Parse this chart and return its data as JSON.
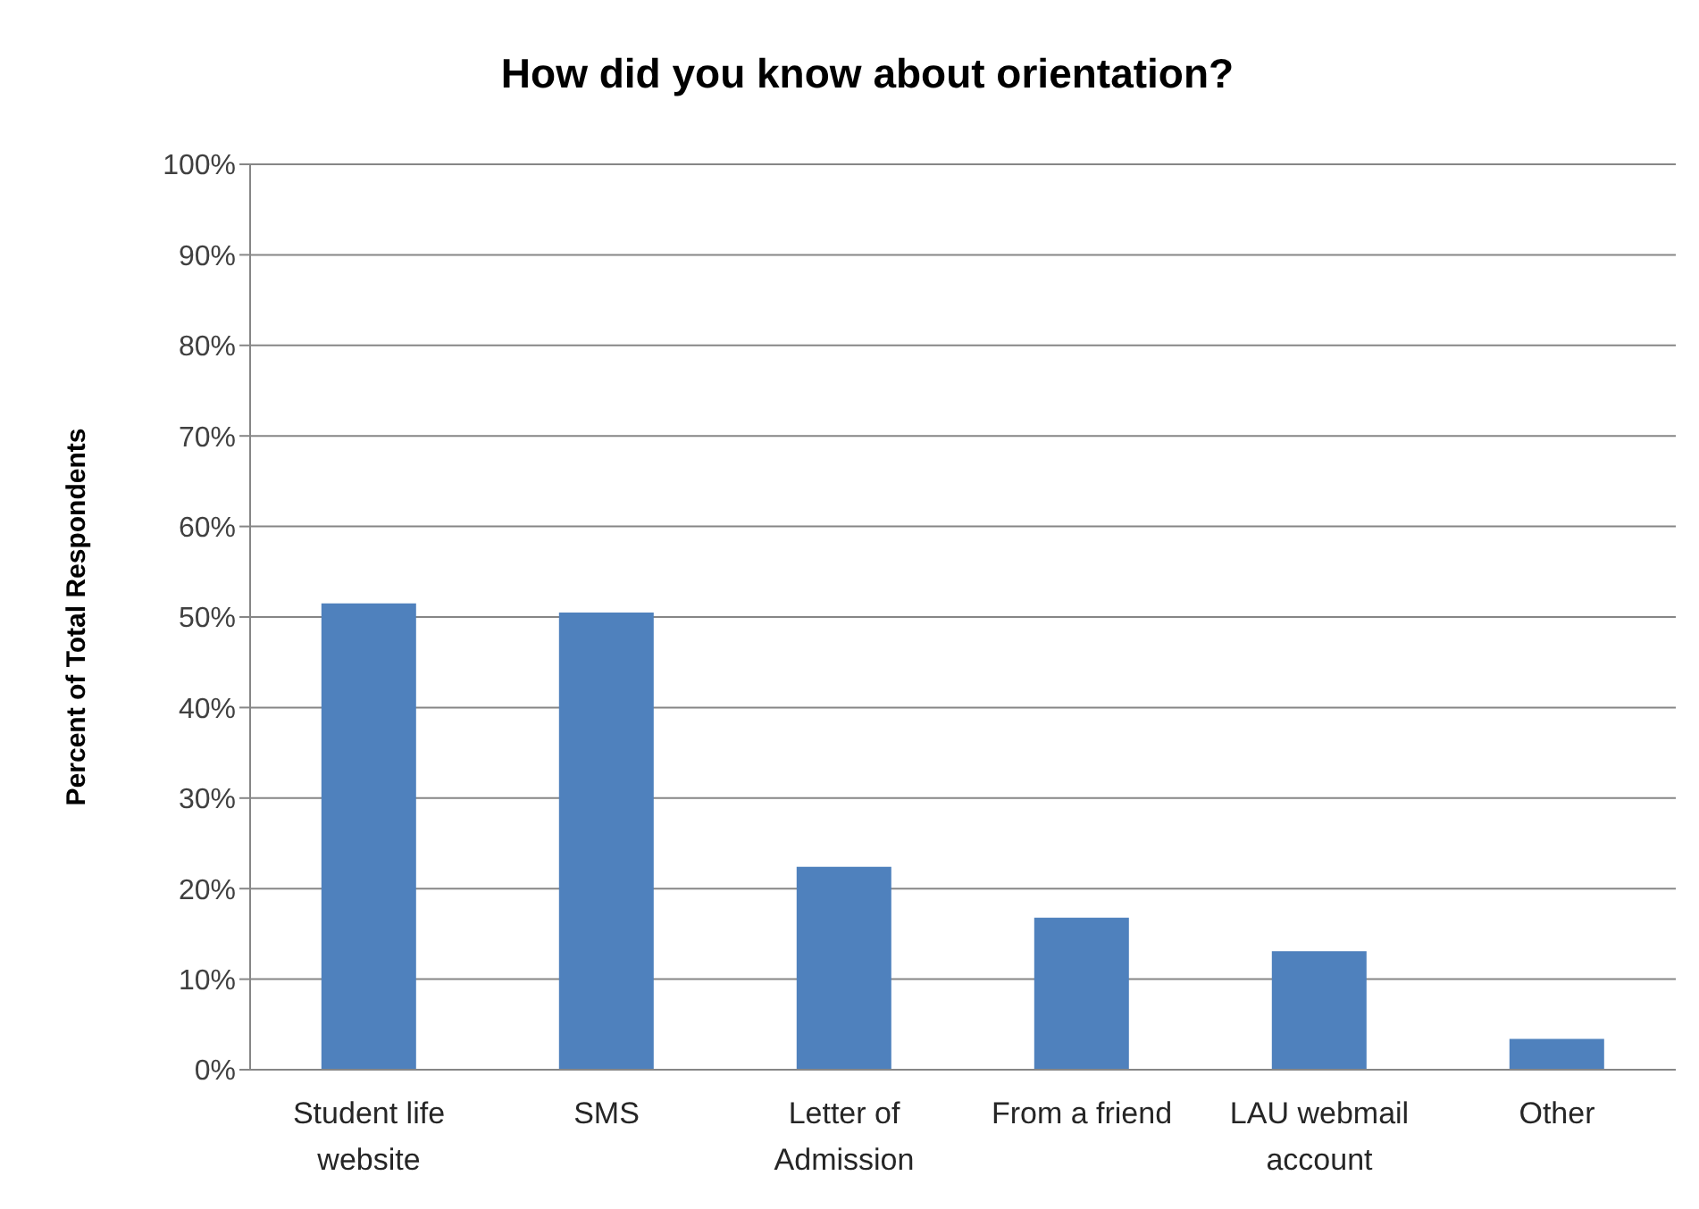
{
  "chart_data": {
    "type": "bar",
    "title": "How did you know about orientation?",
    "ylabel": "Percent of Total Respondents",
    "categories": [
      "Student life website",
      "SMS",
      "Letter of Admission",
      "From a friend",
      "LAU webmail account",
      "Other"
    ],
    "values": [
      51.5,
      50.5,
      22.4,
      16.8,
      13.1,
      3.4
    ],
    "color": "#4f81bd",
    "ylim": [
      0,
      100
    ],
    "yticks": [
      {
        "value": 0,
        "label": "0%"
      },
      {
        "value": 10,
        "label": "10%"
      },
      {
        "value": 20,
        "label": "20%"
      },
      {
        "value": 30,
        "label": "30%"
      },
      {
        "value": 40,
        "label": "40%"
      },
      {
        "value": 50,
        "label": "50%"
      },
      {
        "value": 60,
        "label": "60%"
      },
      {
        "value": 70,
        "label": "70%"
      },
      {
        "value": 80,
        "label": "80%"
      },
      {
        "value": 90,
        "label": "90%"
      },
      {
        "value": 100,
        "label": "100%"
      }
    ],
    "grid": "y"
  }
}
